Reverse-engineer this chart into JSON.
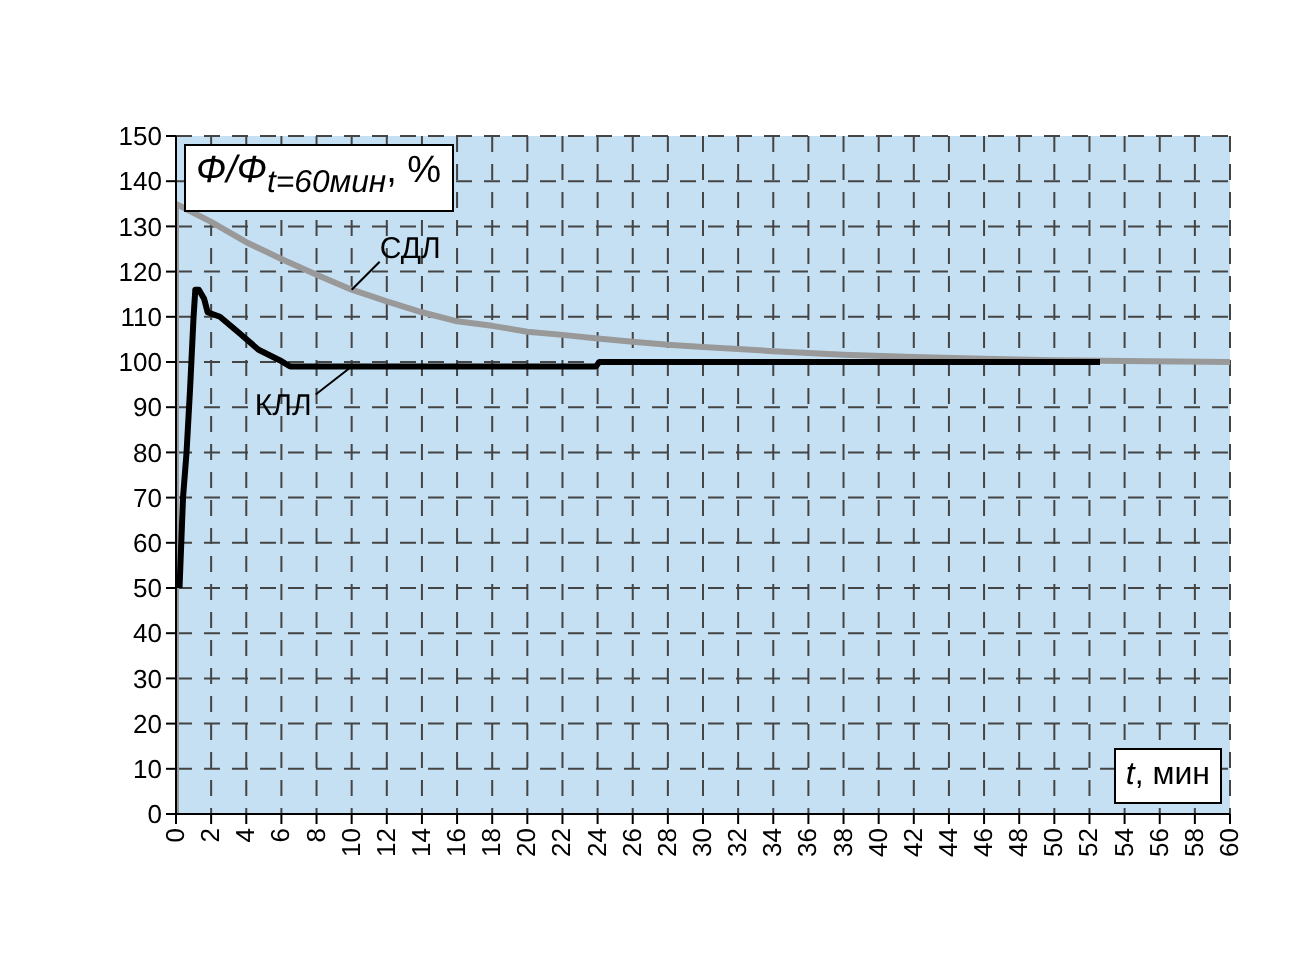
{
  "chart_data": {
    "type": "line",
    "xlabel": "t, мин",
    "ylabel": "Ф/Ф$_{t=60мин}$, %",
    "xlim": [
      0,
      60
    ],
    "xticks": [
      0,
      2,
      4,
      6,
      8,
      10,
      12,
      14,
      16,
      18,
      20,
      22,
      24,
      26,
      28,
      30,
      32,
      34,
      36,
      38,
      40,
      42,
      44,
      46,
      48,
      50,
      52,
      54,
      56,
      58,
      60
    ],
    "ylim": [
      0,
      150
    ],
    "yticks": [
      0,
      10,
      20,
      30,
      40,
      50,
      60,
      70,
      80,
      90,
      100,
      110,
      120,
      130,
      140,
      150
    ],
    "grid": true,
    "marker": "none",
    "line_style": "solid",
    "series": [
      {
        "name": "СДЛ",
        "color": "#999999",
        "x": [
          0,
          0,
          2,
          4,
          6,
          8,
          10,
          12,
          14,
          16,
          18,
          20,
          22,
          24,
          26,
          28,
          30,
          34,
          38,
          42,
          46,
          50,
          54,
          60
        ],
        "values": [
          0,
          135,
          131,
          126.5,
          122.8,
          119.3,
          116,
          113.4,
          111,
          109,
          108,
          106.7,
          106,
          105.2,
          104.5,
          103.8,
          103.3,
          102.4,
          101.6,
          101.1,
          100.7,
          100.4,
          100.2,
          100
        ]
      },
      {
        "name": "КЛЛ",
        "color": "#000000",
        "x": [
          0.2,
          0.4,
          0.6,
          0.8,
          1.0,
          1.1,
          1.3,
          1.6,
          1.8,
          2.5,
          3.6,
          4.7,
          5.9,
          6.5,
          10,
          16,
          22,
          23.9,
          24.1,
          30,
          40,
          52.6
        ],
        "values": [
          50,
          70,
          80,
          94,
          110,
          116,
          116,
          114,
          111,
          110,
          106.4,
          102.7,
          100.4,
          99,
          99,
          99,
          99,
          99,
          100,
          100,
          100,
          100
        ]
      }
    ]
  }
}
